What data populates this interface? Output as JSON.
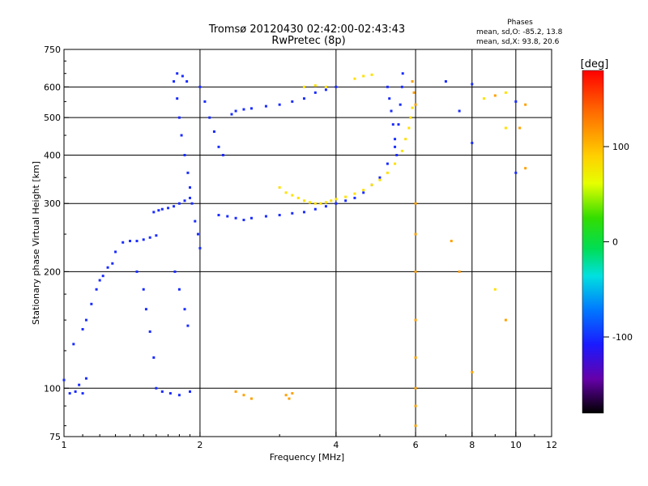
{
  "chart_data": {
    "type": "scatter",
    "title": "Tromsø 20120430 02:42:00-02:43:43",
    "subtitle": "RwPretec (8p)",
    "xlabel": "Frequency [MHz]",
    "ylabel": "Stationary phase Virtual Height [km]",
    "x_scale": "log",
    "y_scale": "log",
    "xlim": [
      1,
      12
    ],
    "ylim": [
      75,
      750
    ],
    "x_ticks": [
      1,
      2,
      4,
      6,
      8,
      10,
      12
    ],
    "y_ticks": [
      75,
      100,
      200,
      300,
      400,
      500,
      600,
      750
    ],
    "grid": true,
    "phases_box": {
      "title": "Phases",
      "line1": "mean, sd,O: -85.2, 13.8",
      "line2": "mean, sd,X:  93.8, 20.6"
    },
    "colorbar": {
      "label": "[deg]",
      "ticks": [
        100,
        0,
        -100
      ],
      "range": [
        -180,
        180
      ]
    },
    "series": [
      {
        "values": [
          [
            1.0,
            105,
            -110
          ],
          [
            1.03,
            97,
            -120
          ],
          [
            1.06,
            98,
            -100
          ],
          [
            1.08,
            102,
            -110
          ],
          [
            1.1,
            97,
            -100
          ],
          [
            1.12,
            106,
            -120
          ],
          [
            1.05,
            130,
            -110
          ],
          [
            1.1,
            142,
            -100
          ],
          [
            1.12,
            150,
            -110
          ],
          [
            1.15,
            165,
            -120
          ],
          [
            1.18,
            180,
            -100
          ],
          [
            1.2,
            190,
            -110
          ],
          [
            1.22,
            195,
            -100
          ],
          [
            1.25,
            205,
            -110
          ],
          [
            1.28,
            210,
            -100
          ],
          [
            1.3,
            225,
            -110
          ],
          [
            1.35,
            238,
            -120
          ],
          [
            1.4,
            240,
            -100
          ],
          [
            1.45,
            240,
            -110
          ],
          [
            1.5,
            242,
            -100
          ],
          [
            1.55,
            245,
            -110
          ],
          [
            1.6,
            248,
            -100
          ],
          [
            1.58,
            285,
            -110
          ],
          [
            1.62,
            288,
            -100
          ],
          [
            1.65,
            290,
            -110
          ],
          [
            1.7,
            292,
            -100
          ],
          [
            1.75,
            295,
            -110
          ],
          [
            1.8,
            300,
            -100
          ],
          [
            1.85,
            305,
            -110
          ],
          [
            1.9,
            310,
            -120
          ],
          [
            1.45,
            200,
            -100
          ],
          [
            1.5,
            180,
            -110
          ],
          [
            1.52,
            160,
            -100
          ],
          [
            1.55,
            140,
            -110
          ],
          [
            1.58,
            120,
            -100
          ],
          [
            1.6,
            100,
            -110
          ],
          [
            1.65,
            98,
            -100
          ],
          [
            1.72,
            97,
            -110
          ],
          [
            1.8,
            96,
            -100
          ],
          [
            1.9,
            98,
            -110
          ],
          [
            1.75,
            620,
            -100
          ],
          [
            1.78,
            560,
            -110
          ],
          [
            1.8,
            500,
            -100
          ],
          [
            1.82,
            450,
            -110
          ],
          [
            1.85,
            400,
            -100
          ],
          [
            1.88,
            360,
            -110
          ],
          [
            1.9,
            330,
            -100
          ],
          [
            1.92,
            300,
            -110
          ],
          [
            1.95,
            270,
            -100
          ],
          [
            1.98,
            250,
            -110
          ],
          [
            2.0,
            230,
            -100
          ],
          [
            1.76,
            200,
            -110
          ],
          [
            1.8,
            180,
            -100
          ],
          [
            1.85,
            160,
            -110
          ],
          [
            1.88,
            145,
            -100
          ],
          [
            1.78,
            650,
            -110
          ],
          [
            1.83,
            640,
            -100
          ],
          [
            1.87,
            620,
            -110
          ],
          [
            2.0,
            600,
            -100
          ],
          [
            2.05,
            550,
            -110
          ],
          [
            2.1,
            500,
            -100
          ],
          [
            2.15,
            460,
            -110
          ],
          [
            2.2,
            420,
            -100
          ],
          [
            2.25,
            400,
            -110
          ],
          [
            2.35,
            510,
            -100
          ],
          [
            2.4,
            520,
            -110
          ],
          [
            2.5,
            525,
            -100
          ],
          [
            2.6,
            528,
            -110
          ],
          [
            2.8,
            535,
            -100
          ],
          [
            3.0,
            540,
            -110
          ],
          [
            3.2,
            550,
            -100
          ],
          [
            3.4,
            560,
            -110
          ],
          [
            3.6,
            580,
            -100
          ],
          [
            3.8,
            590,
            -110
          ],
          [
            4.0,
            600,
            -100
          ],
          [
            2.2,
            280,
            -110
          ],
          [
            2.3,
            278,
            -100
          ],
          [
            2.4,
            275,
            -110
          ],
          [
            2.5,
            272,
            -100
          ],
          [
            2.6,
            275,
            -110
          ],
          [
            2.8,
            278,
            -100
          ],
          [
            3.0,
            280,
            -110
          ],
          [
            3.2,
            283,
            -100
          ],
          [
            3.4,
            285,
            -110
          ],
          [
            3.6,
            290,
            -100
          ],
          [
            3.8,
            295,
            -110
          ],
          [
            4.0,
            300,
            -100
          ],
          [
            4.2,
            305,
            -110
          ],
          [
            4.4,
            310,
            -100
          ],
          [
            4.6,
            320,
            -110
          ],
          [
            4.8,
            335,
            -100
          ],
          [
            5.0,
            350,
            -110
          ],
          [
            5.2,
            380,
            -100
          ],
          [
            5.4,
            420,
            -110
          ],
          [
            5.5,
            480,
            -100
          ],
          [
            5.55,
            540,
            -110
          ],
          [
            5.6,
            600,
            -100
          ],
          [
            5.62,
            650,
            -110
          ],
          [
            5.2,
            600,
            -100
          ],
          [
            5.25,
            560,
            -110
          ],
          [
            5.3,
            520,
            -100
          ],
          [
            5.35,
            480,
            -110
          ],
          [
            5.4,
            440,
            -100
          ],
          [
            5.45,
            400,
            -110
          ],
          [
            3.0,
            330,
            80
          ],
          [
            3.1,
            320,
            90
          ],
          [
            3.2,
            315,
            100
          ],
          [
            3.3,
            310,
            85
          ],
          [
            3.4,
            305,
            95
          ],
          [
            3.5,
            302,
            90
          ],
          [
            3.6,
            300,
            100
          ],
          [
            3.7,
            300,
            85
          ],
          [
            3.8,
            302,
            95
          ],
          [
            3.9,
            305,
            90
          ],
          [
            4.0,
            308,
            100
          ],
          [
            4.2,
            312,
            85
          ],
          [
            4.4,
            318,
            95
          ],
          [
            4.6,
            325,
            90
          ],
          [
            4.8,
            335,
            100
          ],
          [
            5.0,
            345,
            85
          ],
          [
            5.2,
            360,
            95
          ],
          [
            5.4,
            380,
            90
          ],
          [
            5.6,
            410,
            100
          ],
          [
            5.7,
            440,
            85
          ],
          [
            5.8,
            470,
            95
          ],
          [
            5.85,
            500,
            90
          ],
          [
            5.9,
            530,
            100
          ],
          [
            3.4,
            600,
            90
          ],
          [
            3.6,
            605,
            100
          ],
          [
            3.8,
            600,
            85
          ],
          [
            4.4,
            630,
            95
          ],
          [
            4.6,
            640,
            90
          ],
          [
            4.8,
            645,
            100
          ],
          [
            2.4,
            98,
            110
          ],
          [
            2.5,
            96,
            105
          ],
          [
            2.6,
            94,
            115
          ],
          [
            3.1,
            96,
            110
          ],
          [
            3.15,
            94,
            105
          ],
          [
            3.2,
            97,
            115
          ],
          [
            5.9,
            620,
            110
          ],
          [
            5.95,
            580,
            105
          ],
          [
            6.0,
            540,
            115
          ],
          [
            6.0,
            300,
            110
          ],
          [
            6.0,
            250,
            105
          ],
          [
            6.0,
            200,
            110
          ],
          [
            6.0,
            150,
            115
          ],
          [
            6.0,
            120,
            105
          ],
          [
            6.0,
            100,
            110
          ],
          [
            6.0,
            90,
            115
          ],
          [
            6.0,
            80,
            105
          ],
          [
            7.0,
            620,
            -120
          ],
          [
            7.5,
            520,
            -110
          ],
          [
            8.0,
            610,
            -100
          ],
          [
            8.5,
            560,
            100
          ],
          [
            9.0,
            570,
            110
          ],
          [
            9.5,
            580,
            100
          ],
          [
            10.0,
            550,
            -110
          ],
          [
            10.5,
            540,
            120
          ],
          [
            7.2,
            240,
            110
          ],
          [
            7.5,
            200,
            105
          ],
          [
            8.0,
            110,
            120
          ],
          [
            9.0,
            180,
            100
          ],
          [
            9.5,
            150,
            110
          ],
          [
            10.0,
            360,
            -110
          ],
          [
            10.2,
            470,
            105
          ],
          [
            10.5,
            370,
            110
          ],
          [
            8.0,
            430,
            -120
          ],
          [
            9.5,
            470,
            100
          ]
        ]
      }
    ]
  }
}
